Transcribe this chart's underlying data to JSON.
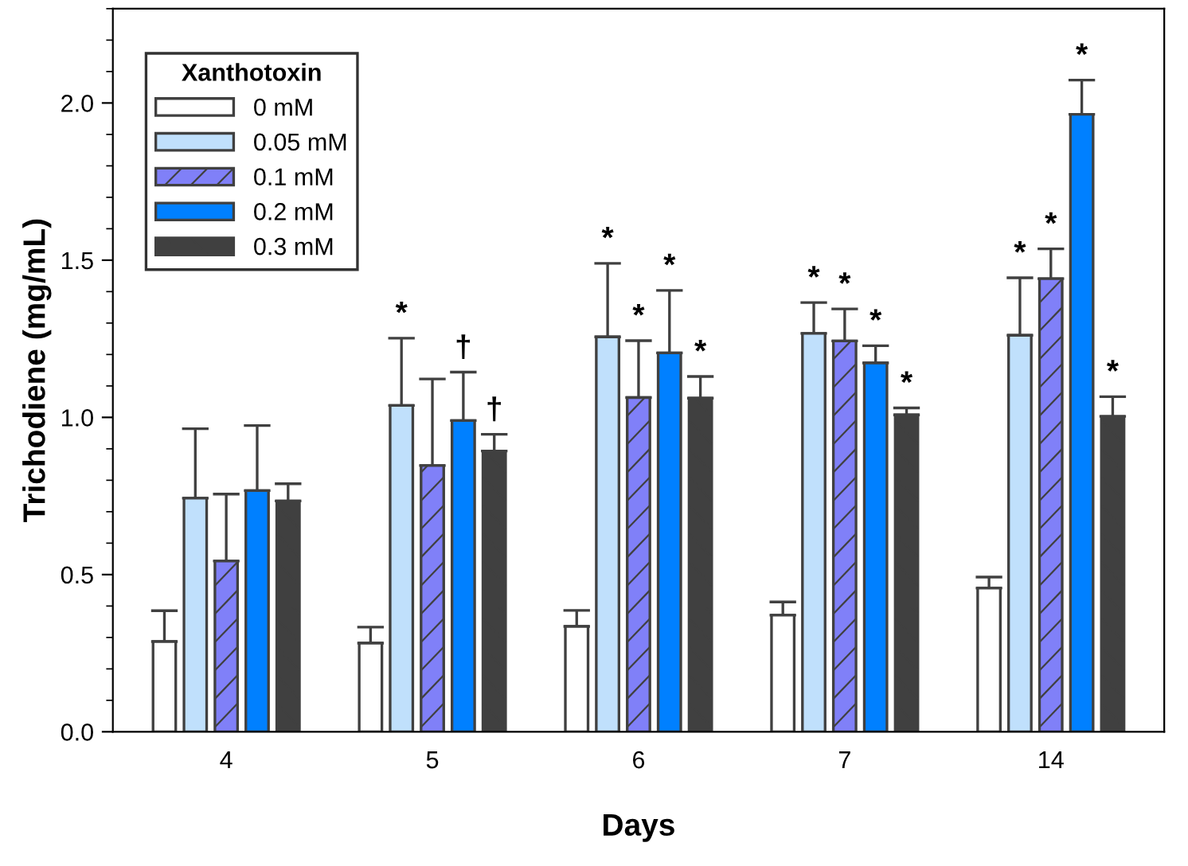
{
  "chart_data": {
    "type": "bar",
    "xlabel": "Days",
    "ylabel": "Trichodiene (mg/mL)",
    "legend_title": "Xanthotoxin",
    "legend": "top left",
    "grid": false,
    "categories": [
      "4",
      "5",
      "6",
      "7",
      "14"
    ],
    "ylim": [
      0,
      2.3
    ],
    "yticks": [
      {
        "value": 0,
        "label": "0.0"
      },
      0.5,
      {
        "value": 1,
        "label": "1.0"
      },
      1.5,
      {
        "value": 2,
        "label": "2.0"
      }
    ],
    "series": [
      {
        "name": "0 mM",
        "color": "#ffffff",
        "values": [
          0.287,
          0.282,
          0.335,
          0.371,
          0.457
        ],
        "errors": [
          [
            0.287,
            0.385
          ],
          [
            0.282,
            0.333
          ],
          [
            0.335,
            0.386
          ],
          [
            0.371,
            0.413
          ],
          [
            0.457,
            0.492
          ]
        ]
      },
      {
        "name": "0.05 mM",
        "color": "#c0e0fc",
        "values": [
          0.743,
          1.038,
          1.256,
          1.267,
          1.261
        ],
        "errors": [
          [
            0.743,
            0.964
          ],
          [
            1.038,
            1.252
          ],
          [
            1.256,
            1.49
          ],
          [
            1.267,
            1.365
          ],
          [
            1.261,
            1.444
          ]
        ],
        "value_labels": [
          null,
          "*",
          "*",
          "*",
          "*"
        ]
      },
      {
        "name": "0.1 mM",
        "color": "#8080f8",
        "values": [
          0.543,
          0.847,
          1.063,
          1.243,
          1.441
        ],
        "errors": [
          [
            0.543,
            0.756
          ],
          [
            0.847,
            1.122
          ],
          [
            1.063,
            1.244
          ],
          [
            1.243,
            1.345
          ],
          [
            1.441,
            1.536
          ]
        ],
        "value_labels": [
          null,
          null,
          "*",
          "*",
          "*"
        ]
      },
      {
        "name": "0.2 mM",
        "color": "#0080ff",
        "values": [
          0.767,
          0.99,
          1.205,
          1.173,
          1.964
        ],
        "errors": [
          [
            0.767,
            0.974
          ],
          [
            0.99,
            1.144
          ],
          [
            1.205,
            1.404
          ],
          [
            1.173,
            1.228
          ],
          [
            1.964,
            2.073
          ]
        ],
        "value_labels": [
          null,
          "†",
          "*",
          "*",
          "*"
        ]
      },
      {
        "name": "0.3 mM",
        "color": "#404040",
        "values": [
          0.734,
          0.893,
          1.061,
          1.008,
          1.003
        ],
        "errors": [
          [
            0.734,
            0.789
          ],
          [
            0.893,
            0.946
          ],
          [
            1.061,
            1.13
          ],
          [
            1.008,
            1.03
          ],
          [
            1.003,
            1.066
          ]
        ],
        "value_labels": [
          null,
          "†",
          "*",
          "*",
          "*"
        ]
      }
    ]
  }
}
